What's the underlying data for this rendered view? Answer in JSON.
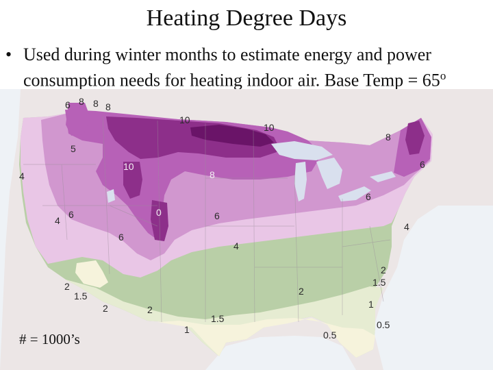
{
  "slide": {
    "title": "Heating Degree Days",
    "bullet_marker": "•",
    "bullet_text": "Used during winter months to estimate energy and power consumption needs for heating indoor air. Base Temp = 65",
    "bullet_degree": "o",
    "footnote": "# = 1000’s"
  },
  "map": {
    "region": "United States",
    "colors": {
      "canada": "#ece6e6",
      "mexico": "#f0eae4",
      "ocean": "#eef2f6",
      "lakes": "#d9e0ee",
      "zone_0_to_1": "#f6f3dc",
      "zone_1_to_2": "#e6ecd2",
      "zone_2_to_4": "#b9cfa7",
      "zone_4_to_6": "#e9c6e6",
      "zone_6_to_8": "#d197cf",
      "zone_8_to_10": "#b761b7",
      "zone_10_plus": "#8d2f8a",
      "zone_max": "#6a1468"
    },
    "contour_labels": {
      "nw_6": "6",
      "nw_8a": "8",
      "nw_8b": "8",
      "nw_8c": "8",
      "north_10a": "10",
      "north_10b": "10",
      "ne_8": "8",
      "ne_6": "6",
      "rockies_10": "10",
      "rockies_0": "0",
      "west_5": "5",
      "west_4": "4",
      "west_6a": "6",
      "west_4b": "4",
      "west_6b": "6",
      "central_8": "8",
      "central_6": "6",
      "east_6": "6",
      "east_4": "4",
      "south_4": "4",
      "sw_2": "2",
      "sw_15": "1.5",
      "sw_2b": "2",
      "south_2": "2",
      "south_2b": "2",
      "se_2": "2",
      "se_15": "1.5",
      "gulf_15": "1.5",
      "gulf_1": "1",
      "se_1": "1",
      "fl_05a": "0.5",
      "fl_05b": "0.5"
    }
  }
}
